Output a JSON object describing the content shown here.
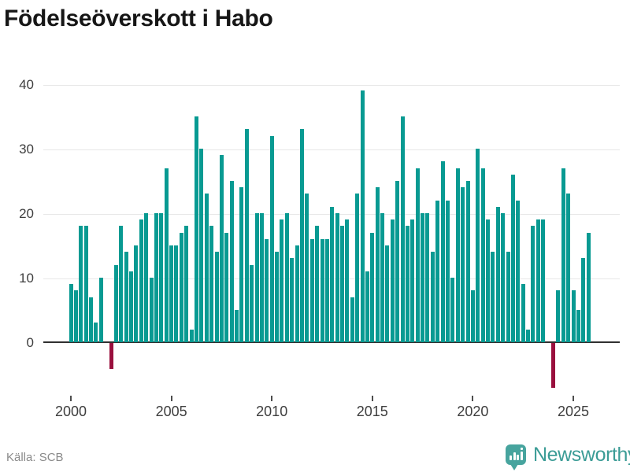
{
  "title": "Födelseöverskott i Habo",
  "source": "Källa: SCB",
  "branding": {
    "name": "Newsworthy",
    "logo_icon": "newsworthy-chart-bubble-icon"
  },
  "colors": {
    "bar_positive": "#089a92",
    "bar_negative": "#990f3d",
    "axis_line": "#303030",
    "gridline": "#e7e7e7",
    "axis_text": "#3e3e3e",
    "muted_text": "#8a8a8a",
    "brand_teal": "#47a49e",
    "title_text": "#161616"
  },
  "chart_data": {
    "type": "bar",
    "title": "Födelseöverskott i Habo",
    "frequency": "quarterly",
    "start_year": 2000,
    "quarters_per_year": 4,
    "grid": true,
    "legend_position": "none",
    "yticks": [
      0,
      10,
      20,
      30,
      40
    ],
    "ylim": [
      -10,
      42
    ],
    "xticks": [
      2000,
      2005,
      2010,
      2015,
      2020,
      2025
    ],
    "negative_bars_highlighted": true,
    "values": [
      9,
      8,
      18,
      18,
      7,
      3,
      10,
      0,
      -4,
      12,
      18,
      14,
      11,
      15,
      19,
      20,
      10,
      20,
      20,
      27,
      15,
      15,
      17,
      18,
      2,
      35,
      30,
      23,
      18,
      14,
      29,
      17,
      25,
      5,
      24,
      33,
      12,
      20,
      20,
      16,
      32,
      14,
      19,
      20,
      13,
      15,
      33,
      23,
      16,
      18,
      16,
      16,
      21,
      20,
      18,
      19,
      7,
      23,
      39,
      11,
      17,
      24,
      20,
      15,
      19,
      25,
      35,
      18,
      19,
      27,
      20,
      20,
      14,
      22,
      28,
      22,
      10,
      27,
      24,
      25,
      8,
      30,
      27,
      19,
      14,
      21,
      20,
      14,
      26,
      22,
      9,
      2,
      18,
      19,
      19,
      0,
      -7,
      8,
      27,
      23,
      8,
      5,
      13,
      17
    ]
  }
}
